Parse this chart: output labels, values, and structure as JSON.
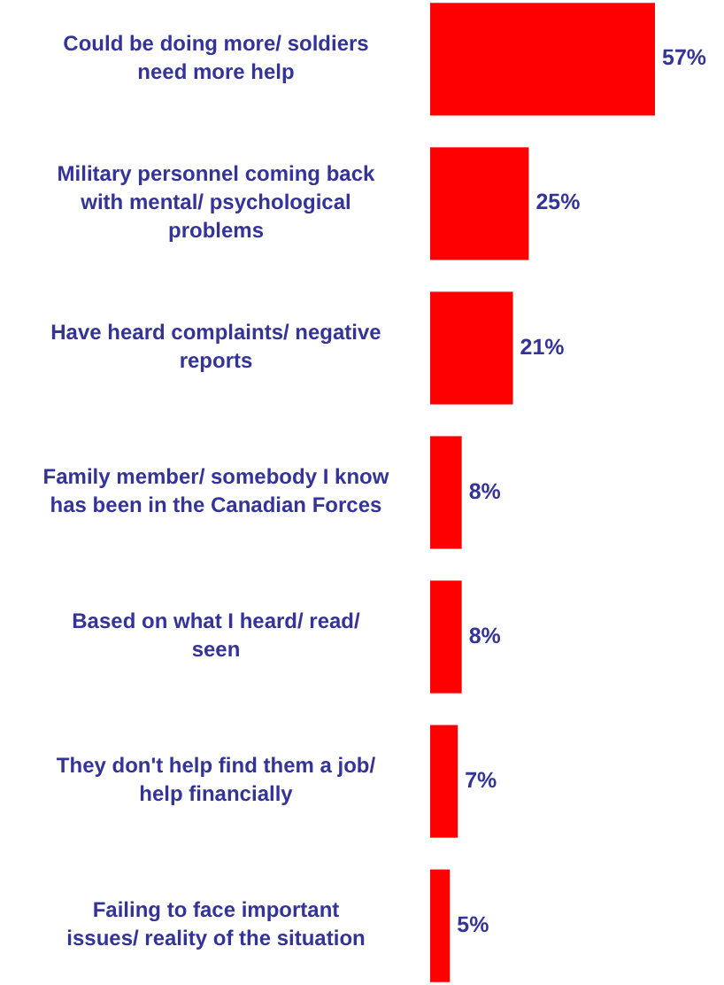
{
  "chart_data": {
    "type": "bar",
    "orientation": "horizontal",
    "categories": [
      "Could be doing more/ soldiers need more help",
      "Military personnel coming back with mental/ psychological problems",
      "Have heard complaints/ negative reports",
      "Family member/ somebody I know has been in the Canadian Forces",
      "Based on what I heard/ read/ seen",
      "They don't help find them a job/ help financially",
      "Failing to face important issues/ reality of the situation"
    ],
    "values": [
      57,
      25,
      21,
      8,
      8,
      7,
      5
    ],
    "value_labels": [
      "57%",
      "25%",
      "21%",
      "8%",
      "8%",
      "7%",
      "5%"
    ],
    "color": "#ff0000"
  }
}
